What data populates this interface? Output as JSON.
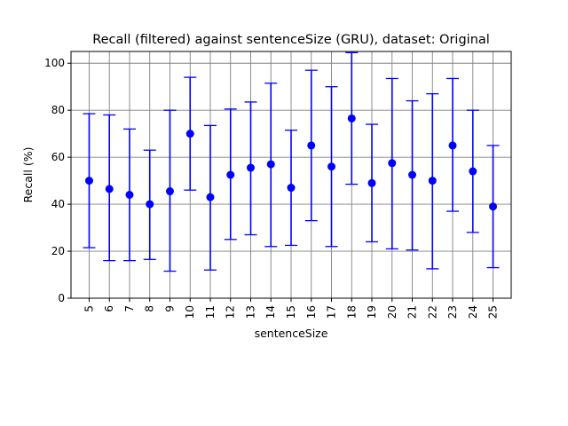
{
  "chart_data": {
    "type": "scatter",
    "title": "Recall (filtered) against sentenceSize (GRU), dataset: Original",
    "xlabel": "sentenceSize",
    "ylabel": "Recall (%)",
    "ylim": [
      0,
      105
    ],
    "grid": true,
    "error_bars": true,
    "marker_color": "#0000ff",
    "grid_color": "#808080",
    "x": [
      5,
      6,
      7,
      8,
      9,
      10,
      11,
      12,
      13,
      14,
      15,
      16,
      17,
      18,
      19,
      20,
      21,
      22,
      23,
      24,
      25
    ],
    "yticks": [
      0,
      20,
      40,
      60,
      80,
      100
    ],
    "series": [
      {
        "values": [
          50,
          46.5,
          44,
          40,
          45.5,
          70,
          43,
          52.5,
          55.5,
          57,
          47,
          65,
          56,
          76.5,
          49,
          57.5,
          52.5,
          50,
          65,
          54,
          39
        ],
        "err_low": [
          21.5,
          16,
          16,
          16.5,
          11.5,
          46,
          12,
          25,
          27,
          22,
          22.5,
          33,
          22,
          48.5,
          24,
          21,
          20.5,
          12.5,
          37,
          28,
          13
        ],
        "err_high": [
          78.5,
          78,
          72,
          63,
          80,
          94,
          73.5,
          80.5,
          83.5,
          91.5,
          71.5,
          97,
          90,
          104.5,
          74,
          93.5,
          84,
          87,
          93.5,
          80,
          65
        ]
      }
    ]
  }
}
